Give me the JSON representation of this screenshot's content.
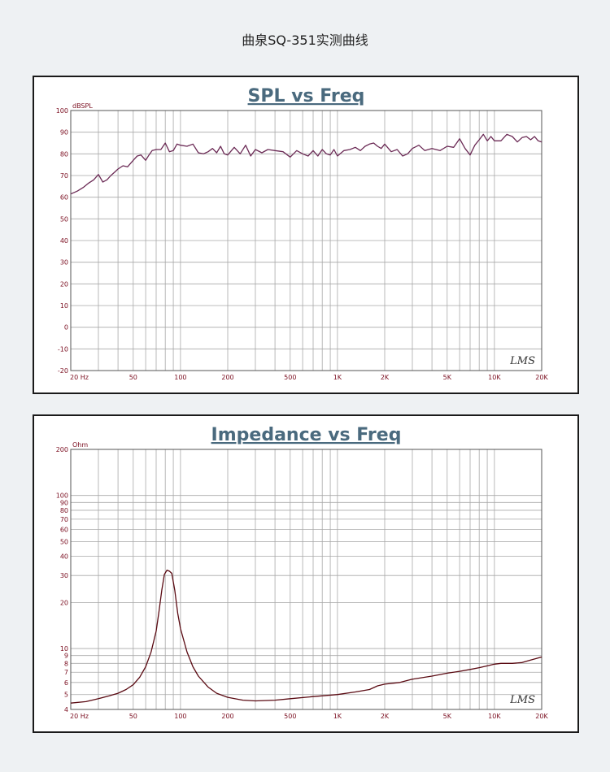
{
  "page_title": "曲泉SQ-351实测曲线",
  "colors": {
    "page_bg": "#eef1f3",
    "plot_bg": "#ffffff",
    "grid": "#a8a8a8",
    "title": "#4a6a7e",
    "tick_text": "#7a0d1f",
    "spl_line": "#6b2a55",
    "imp_line": "#5a0a12"
  },
  "chart_data": [
    {
      "type": "line",
      "title": "SPL vs Freq",
      "ylabel": "dBSPL",
      "xlabel": "",
      "x_scale": "log",
      "xlim": [
        20,
        20000
      ],
      "ylim": [
        -20,
        100
      ],
      "grid": true,
      "x_tick_labels": [
        {
          "value": 20,
          "label": "20  Hz"
        },
        {
          "value": 50,
          "label": "50"
        },
        {
          "value": 100,
          "label": "100"
        },
        {
          "value": 200,
          "label": "200"
        },
        {
          "value": 500,
          "label": "500"
        },
        {
          "value": 1000,
          "label": "1K"
        },
        {
          "value": 2000,
          "label": "2K"
        },
        {
          "value": 5000,
          "label": "5K"
        },
        {
          "value": 10000,
          "label": "10K"
        },
        {
          "value": 20000,
          "label": "20K"
        }
      ],
      "y_tick_labels": [
        {
          "value": 100,
          "label": "100"
        },
        {
          "value": 90,
          "label": "90"
        },
        {
          "value": 80,
          "label": "80"
        },
        {
          "value": 70,
          "label": "70"
        },
        {
          "value": 60,
          "label": "60"
        },
        {
          "value": 50,
          "label": "50"
        },
        {
          "value": 40,
          "label": "40"
        },
        {
          "value": 30,
          "label": "30"
        },
        {
          "value": 20,
          "label": "20"
        },
        {
          "value": 10,
          "label": "10"
        },
        {
          "value": 0,
          "label": "0"
        },
        {
          "value": -10,
          "label": "-10"
        },
        {
          "value": -20,
          "label": "-20"
        }
      ],
      "logo": "LMS",
      "series": [
        {
          "x": [
            20,
            22,
            24,
            26,
            28,
            30,
            32,
            34,
            36,
            38,
            40,
            43,
            46,
            50,
            53,
            56,
            60,
            63,
            66,
            70,
            75,
            80,
            85,
            90,
            95,
            100,
            110,
            120,
            130,
            140,
            150,
            160,
            170,
            180,
            190,
            200,
            220,
            240,
            260,
            280,
            300,
            330,
            360,
            400,
            450,
            500,
            550,
            600,
            650,
            700,
            750,
            800,
            850,
            900,
            950,
            1000,
            1100,
            1200,
            1300,
            1400,
            1500,
            1600,
            1700,
            1800,
            1900,
            2000,
            2200,
            2400,
            2600,
            2800,
            3000,
            3300,
            3600,
            4000,
            4500,
            5000,
            5500,
            6000,
            6500,
            7000,
            7500,
            8000,
            8500,
            9000,
            9500,
            10000,
            11000,
            12000,
            13000,
            14000,
            15000,
            16000,
            17000,
            18000,
            19000,
            20000
          ],
          "values": [
            61.5,
            62.8,
            64.5,
            66.5,
            68.0,
            70.5,
            67.0,
            68.0,
            70.0,
            71.5,
            73.0,
            74.5,
            74.0,
            77.0,
            79.0,
            79.5,
            77.0,
            79.5,
            81.5,
            82.0,
            82.0,
            85.0,
            81.0,
            81.5,
            84.5,
            84.0,
            83.5,
            84.5,
            80.5,
            80.0,
            81.0,
            82.5,
            80.5,
            83.5,
            80.0,
            79.5,
            83.0,
            80.0,
            84.0,
            79.0,
            82.0,
            80.5,
            82.0,
            81.5,
            81.0,
            78.5,
            81.5,
            80.0,
            79.0,
            81.5,
            79.0,
            82.0,
            80.0,
            79.5,
            82.0,
            79.0,
            81.5,
            82.0,
            83.0,
            81.5,
            83.5,
            84.5,
            85.0,
            83.5,
            82.5,
            84.5,
            81.0,
            82.0,
            79.0,
            80.0,
            82.5,
            84.0,
            81.5,
            82.5,
            81.5,
            83.5,
            83.0,
            87.0,
            82.5,
            79.5,
            84.0,
            86.5,
            89.0,
            86.0,
            88.0,
            86.0,
            86.0,
            89.0,
            88.0,
            85.5,
            87.5,
            88.0,
            86.5,
            88.0,
            86.0,
            85.5
          ]
        }
      ]
    },
    {
      "type": "line",
      "title": "Impedance vs Freq",
      "ylabel": "Ohm",
      "xlabel": "",
      "x_scale": "log",
      "y_scale": "log",
      "xlim": [
        20,
        20000
      ],
      "ylim": [
        4,
        200
      ],
      "grid": true,
      "x_tick_labels": [
        {
          "value": 20,
          "label": "20  Hz"
        },
        {
          "value": 50,
          "label": "50"
        },
        {
          "value": 100,
          "label": "100"
        },
        {
          "value": 200,
          "label": "200"
        },
        {
          "value": 500,
          "label": "500"
        },
        {
          "value": 1000,
          "label": "1K"
        },
        {
          "value": 2000,
          "label": "2K"
        },
        {
          "value": 5000,
          "label": "5K"
        },
        {
          "value": 10000,
          "label": "10K"
        },
        {
          "value": 20000,
          "label": "20K"
        }
      ],
      "y_tick_labels": [
        {
          "value": 200,
          "label": "200"
        },
        {
          "value": 100,
          "label": "100"
        },
        {
          "value": 90,
          "label": "90"
        },
        {
          "value": 80,
          "label": "80"
        },
        {
          "value": 70,
          "label": "70"
        },
        {
          "value": 60,
          "label": "60"
        },
        {
          "value": 50,
          "label": "50"
        },
        {
          "value": 40,
          "label": "40"
        },
        {
          "value": 30,
          "label": "30"
        },
        {
          "value": 20,
          "label": "20"
        },
        {
          "value": 10,
          "label": "10"
        },
        {
          "value": 9,
          "label": "9"
        },
        {
          "value": 8,
          "label": "8"
        },
        {
          "value": 7,
          "label": "7"
        },
        {
          "value": 6,
          "label": "6"
        },
        {
          "value": 5,
          "label": "5"
        },
        {
          "value": 4,
          "label": "4"
        }
      ],
      "logo": "LMS",
      "series": [
        {
          "x": [
            20,
            25,
            30,
            35,
            40,
            45,
            50,
            55,
            60,
            65,
            70,
            73,
            76,
            79,
            82,
            85,
            88,
            92,
            96,
            100,
            110,
            120,
            130,
            150,
            170,
            200,
            250,
            300,
            400,
            500,
            700,
            1000,
            1300,
            1600,
            1800,
            2000,
            2500,
            3000,
            4000,
            5000,
            6000,
            7000,
            8000,
            9000,
            10000,
            11000,
            13000,
            15000,
            17000,
            20000
          ],
          "values": [
            4.4,
            4.5,
            4.7,
            4.9,
            5.1,
            5.4,
            5.8,
            6.5,
            7.6,
            9.5,
            13.0,
            17.5,
            24.0,
            30.5,
            32.5,
            32.0,
            31.0,
            24.0,
            17.0,
            13.5,
            9.5,
            7.6,
            6.6,
            5.6,
            5.1,
            4.8,
            4.6,
            4.55,
            4.6,
            4.7,
            4.85,
            5.0,
            5.2,
            5.4,
            5.7,
            5.85,
            6.0,
            6.3,
            6.6,
            6.9,
            7.1,
            7.3,
            7.5,
            7.7,
            7.9,
            8.0,
            8.0,
            8.1,
            8.4,
            8.8
          ]
        }
      ]
    }
  ]
}
